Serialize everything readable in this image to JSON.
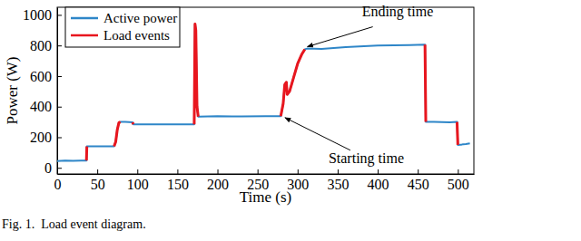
{
  "chart_data": {
    "type": "line",
    "x_label": "Time (s)",
    "y_label": "Power (W)",
    "caption": "Fig. 1.  Load event diagram.",
    "x": [
      0,
      10,
      20,
      30,
      36.5,
      37,
      37.5,
      50,
      60,
      71,
      73,
      75,
      77,
      79,
      85,
      94,
      95,
      110,
      130,
      150,
      171,
      172,
      173,
      174.5,
      176,
      200,
      230,
      260,
      279,
      282,
      284,
      286,
      287,
      290,
      295,
      300,
      305,
      309,
      312,
      330,
      360,
      400,
      440,
      459,
      460,
      470,
      490,
      499,
      500,
      510,
      515
    ],
    "series": [
      {
        "name": "Active power",
        "color": "#2e86c8",
        "values": [
          45,
          47,
          46,
          48,
          48,
          140,
          140,
          141,
          140,
          141,
          170,
          250,
          295,
          300,
          300,
          298,
          285,
          284,
          285,
          284,
          285,
          940,
          900,
          400,
          335,
          337,
          336,
          337,
          338,
          420,
          545,
          560,
          480,
          500,
          590,
          680,
          740,
          775,
          780,
          778,
          790,
          800,
          803,
          805,
          300,
          300,
          298,
          300,
          150,
          155,
          160
        ]
      },
      {
        "name": "Load events",
        "color": "#e8161e",
        "values": [
          null,
          null,
          null,
          null,
          48,
          140,
          null,
          null,
          null,
          141,
          170,
          250,
          295,
          300,
          null,
          298,
          285,
          null,
          null,
          null,
          285,
          940,
          900,
          400,
          335,
          null,
          null,
          null,
          338,
          420,
          545,
          560,
          480,
          500,
          590,
          680,
          740,
          775,
          null,
          null,
          null,
          null,
          null,
          805,
          300,
          null,
          null,
          300,
          150,
          null,
          null
        ]
      }
    ],
    "xlim": [
      0,
      520
    ],
    "xticks": [
      0,
      50,
      100,
      150,
      200,
      250,
      300,
      350,
      400,
      450,
      500
    ],
    "ylim": [
      -40,
      1050
    ],
    "yticks": [
      0,
      200,
      400,
      600,
      800,
      1000
    ],
    "grid": false,
    "legend": "upper left",
    "annotations": [
      {
        "text": "Ending time",
        "x": 310,
        "y": 780
      },
      {
        "text": "Starting time",
        "x": 282,
        "y": 340
      }
    ]
  }
}
